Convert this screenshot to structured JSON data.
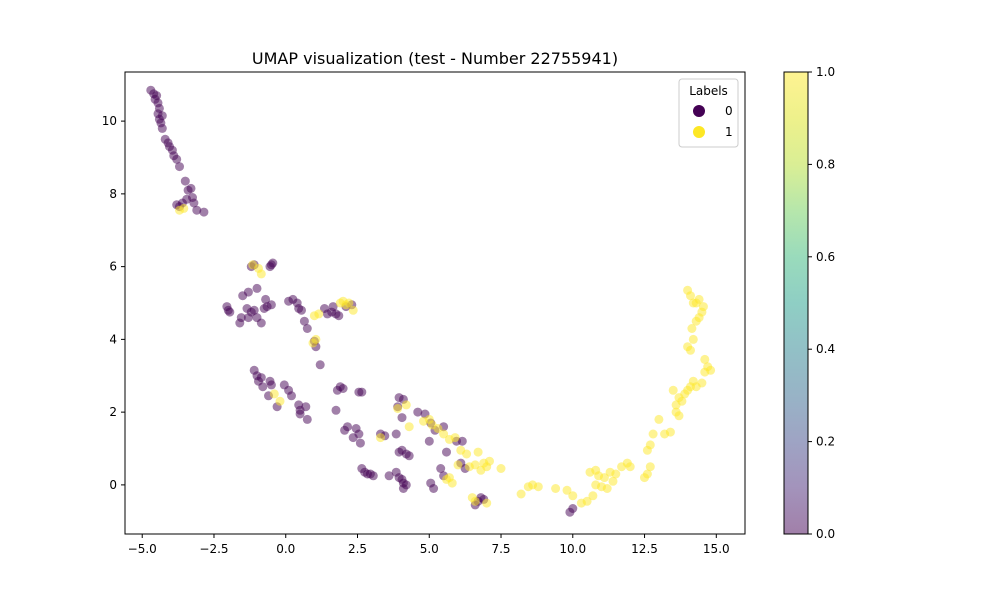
{
  "chart_data": {
    "type": "scatter",
    "title": "UMAP visualization (test - Number 22755941)",
    "xlabel": "",
    "ylabel": "",
    "xlim": [
      -5.6,
      16.0
    ],
    "ylim": [
      -1.35,
      11.35
    ],
    "xticks": [
      -5.0,
      -2.5,
      0.0,
      2.5,
      5.0,
      7.5,
      10.0,
      12.5,
      15.0
    ],
    "xtick_labels": [
      "−5.0",
      "−2.5",
      "0.0",
      "2.5",
      "5.0",
      "7.5",
      "10.0",
      "12.5",
      "15.0"
    ],
    "yticks": [
      0,
      2,
      4,
      6,
      8,
      10
    ],
    "ytick_labels": [
      "0",
      "2",
      "4",
      "6",
      "8",
      "10"
    ],
    "grid": false,
    "legend": {
      "title": "Labels",
      "placement": "top-right",
      "entries": [
        {
          "label": "0",
          "color": "#440154"
        },
        {
          "label": "1",
          "color": "#fde725"
        }
      ]
    },
    "colorbar": {
      "min": 0.0,
      "max": 1.0,
      "ticks": [
        0.0,
        0.2,
        0.4,
        0.6,
        0.8,
        1.0
      ],
      "tick_labels": [
        "0.0",
        "0.2",
        "0.4",
        "0.6",
        "0.8",
        "1.0"
      ],
      "colormap": "viridis",
      "alpha": 0.5
    },
    "point_alpha": 0.5,
    "series": [
      {
        "name": "0",
        "color": "#440154",
        "points": [
          [
            -4.7,
            10.85
          ],
          [
            -4.6,
            10.75
          ],
          [
            -4.55,
            10.6
          ],
          [
            -4.5,
            10.7
          ],
          [
            -4.45,
            10.5
          ],
          [
            -4.4,
            10.35
          ],
          [
            -4.45,
            10.2
          ],
          [
            -4.4,
            10.05
          ],
          [
            -4.3,
            10.15
          ],
          [
            -4.35,
            9.95
          ],
          [
            -4.3,
            9.8
          ],
          [
            -4.2,
            9.5
          ],
          [
            -4.1,
            9.4
          ],
          [
            -4.05,
            9.3
          ],
          [
            -3.95,
            9.2
          ],
          [
            -3.9,
            9.05
          ],
          [
            -3.8,
            8.95
          ],
          [
            -3.7,
            8.75
          ],
          [
            -3.5,
            8.35
          ],
          [
            -3.4,
            8.1
          ],
          [
            -3.3,
            8.15
          ],
          [
            -3.25,
            7.9
          ],
          [
            -3.2,
            7.75
          ],
          [
            -3.45,
            7.85
          ],
          [
            -3.6,
            7.75
          ],
          [
            -3.7,
            7.65
          ],
          [
            -3.8,
            7.7
          ],
          [
            -3.1,
            7.55
          ],
          [
            -2.85,
            7.5
          ],
          [
            -2.05,
            4.9
          ],
          [
            -2.0,
            4.8
          ],
          [
            -1.95,
            4.75
          ],
          [
            -1.5,
            5.2
          ],
          [
            -1.55,
            4.6
          ],
          [
            -1.6,
            4.45
          ],
          [
            -1.35,
            4.85
          ],
          [
            -1.3,
            4.6
          ],
          [
            -1.2,
            4.75
          ],
          [
            -1.1,
            4.8
          ],
          [
            -1.0,
            4.6
          ],
          [
            -0.85,
            4.45
          ],
          [
            -0.75,
            4.85
          ],
          [
            -0.65,
            4.9
          ],
          [
            -0.5,
            4.95
          ],
          [
            -0.7,
            5.1
          ],
          [
            -1.0,
            5.4
          ],
          [
            -1.3,
            5.3
          ],
          [
            -1.2,
            6.0
          ],
          [
            -1.1,
            6.05
          ],
          [
            -0.55,
            6.0
          ],
          [
            -0.5,
            6.05
          ],
          [
            -0.45,
            6.1
          ],
          [
            0.1,
            5.05
          ],
          [
            0.25,
            5.1
          ],
          [
            0.4,
            5.0
          ],
          [
            0.45,
            4.85
          ],
          [
            0.55,
            4.8
          ],
          [
            0.65,
            4.5
          ],
          [
            0.75,
            4.3
          ],
          [
            1.0,
            3.95
          ],
          [
            1.05,
            3.8
          ],
          [
            1.2,
            3.3
          ],
          [
            1.35,
            4.85
          ],
          [
            1.45,
            4.7
          ],
          [
            1.6,
            4.75
          ],
          [
            1.65,
            4.9
          ],
          [
            1.75,
            4.7
          ],
          [
            1.85,
            4.65
          ],
          [
            2.1,
            4.9
          ],
          [
            2.3,
            4.95
          ],
          [
            -1.1,
            3.15
          ],
          [
            -1.0,
            3.0
          ],
          [
            -0.95,
            2.85
          ],
          [
            -0.85,
            2.95
          ],
          [
            -0.8,
            2.7
          ],
          [
            -0.55,
            2.85
          ],
          [
            -0.5,
            2.75
          ],
          [
            -0.6,
            2.45
          ],
          [
            -0.3,
            2.15
          ],
          [
            -0.05,
            2.75
          ],
          [
            0.1,
            2.6
          ],
          [
            0.2,
            2.45
          ],
          [
            0.45,
            2.2
          ],
          [
            0.5,
            2.05
          ],
          [
            0.7,
            2.15
          ],
          [
            0.75,
            1.8
          ],
          [
            0.5,
            1.95
          ],
          [
            1.8,
            2.6
          ],
          [
            1.9,
            2.7
          ],
          [
            2.0,
            2.65
          ],
          [
            1.75,
            2.05
          ],
          [
            2.05,
            1.5
          ],
          [
            2.15,
            1.6
          ],
          [
            2.35,
            1.3
          ],
          [
            2.45,
            1.55
          ],
          [
            2.55,
            1.4
          ],
          [
            2.6,
            1.15
          ],
          [
            2.55,
            2.55
          ],
          [
            2.65,
            2.55
          ],
          [
            3.3,
            1.4
          ],
          [
            3.45,
            1.35
          ],
          [
            3.85,
            1.4
          ],
          [
            3.95,
            2.4
          ],
          [
            4.1,
            2.35
          ],
          [
            3.9,
            2.15
          ],
          [
            4.05,
            1.85
          ],
          [
            4.6,
            2.0
          ],
          [
            4.85,
            1.95
          ],
          [
            5.05,
            1.7
          ],
          [
            5.2,
            1.5
          ],
          [
            5.0,
            1.2
          ],
          [
            5.5,
            1.6
          ],
          [
            3.6,
            0.25
          ],
          [
            3.85,
            0.35
          ],
          [
            3.95,
            0.2
          ],
          [
            4.05,
            0.15
          ],
          [
            4.1,
            0.05
          ],
          [
            4.2,
            0.0
          ],
          [
            4.1,
            -0.1
          ],
          [
            3.95,
            0.9
          ],
          [
            4.05,
            0.95
          ],
          [
            4.2,
            0.85
          ],
          [
            4.3,
            0.8
          ],
          [
            2.65,
            0.45
          ],
          [
            2.75,
            0.35
          ],
          [
            2.85,
            0.3
          ],
          [
            2.95,
            0.3
          ],
          [
            3.05,
            0.25
          ],
          [
            5.05,
            0.05
          ],
          [
            5.15,
            -0.1
          ],
          [
            5.4,
            0.45
          ],
          [
            5.5,
            0.25
          ],
          [
            5.6,
            0.9
          ],
          [
            5.95,
            1.2
          ],
          [
            6.1,
            0.6
          ],
          [
            6.15,
            1.2
          ],
          [
            6.25,
            0.45
          ],
          [
            6.6,
            -0.55
          ],
          [
            6.7,
            -0.45
          ],
          [
            6.8,
            -0.35
          ],
          [
            6.9,
            -0.4
          ],
          [
            9.9,
            -0.75
          ],
          [
            10.0,
            -0.65
          ]
        ]
      },
      {
        "name": "1",
        "color": "#fde725",
        "points": [
          [
            -3.7,
            7.55
          ],
          [
            -3.55,
            7.6
          ],
          [
            -1.15,
            6.05
          ],
          [
            -0.95,
            5.95
          ],
          [
            -0.85,
            5.8
          ],
          [
            1.0,
            4.65
          ],
          [
            1.15,
            4.7
          ],
          [
            1.9,
            5.0
          ],
          [
            2.0,
            5.05
          ],
          [
            2.1,
            4.95
          ],
          [
            2.2,
            5.0
          ],
          [
            2.35,
            4.8
          ],
          [
            1.05,
            4.0
          ],
          [
            0.95,
            3.9
          ],
          [
            -0.2,
            2.3
          ],
          [
            -0.4,
            2.5
          ],
          [
            3.3,
            1.3
          ],
          [
            3.9,
            2.1
          ],
          [
            4.2,
            2.2
          ],
          [
            4.3,
            1.6
          ],
          [
            4.8,
            1.75
          ],
          [
            5.0,
            1.8
          ],
          [
            5.1,
            1.65
          ],
          [
            5.3,
            1.55
          ],
          [
            5.5,
            1.4
          ],
          [
            5.7,
            1.25
          ],
          [
            5.9,
            1.3
          ],
          [
            6.1,
            0.95
          ],
          [
            6.3,
            0.85
          ],
          [
            6.4,
            0.5
          ],
          [
            6.6,
            0.55
          ],
          [
            6.7,
            0.9
          ],
          [
            6.8,
            0.4
          ],
          [
            6.9,
            0.6
          ],
          [
            7.0,
            0.5
          ],
          [
            7.1,
            0.65
          ],
          [
            7.5,
            0.45
          ],
          [
            5.6,
            0.15
          ],
          [
            5.7,
            0.2
          ],
          [
            5.8,
            0.05
          ],
          [
            6.0,
            0.55
          ],
          [
            6.5,
            -0.35
          ],
          [
            6.6,
            -0.45
          ],
          [
            7.0,
            -0.5
          ],
          [
            8.2,
            -0.25
          ],
          [
            8.45,
            -0.05
          ],
          [
            8.6,
            0.0
          ],
          [
            8.8,
            -0.05
          ],
          [
            9.4,
            -0.1
          ],
          [
            9.8,
            -0.15
          ],
          [
            10.0,
            -0.3
          ],
          [
            10.3,
            -0.5
          ],
          [
            10.5,
            -0.45
          ],
          [
            10.7,
            -0.3
          ],
          [
            10.8,
            0.0
          ],
          [
            10.9,
            0.25
          ],
          [
            11.1,
            0.2
          ],
          [
            11.3,
            0.35
          ],
          [
            11.4,
            0.1
          ],
          [
            11.5,
            0.3
          ],
          [
            11.7,
            0.5
          ],
          [
            11.9,
            0.6
          ],
          [
            12.0,
            0.5
          ],
          [
            11.2,
            -0.1
          ],
          [
            10.6,
            0.35
          ],
          [
            10.8,
            0.4
          ],
          [
            11.0,
            -0.05
          ],
          [
            12.5,
            0.2
          ],
          [
            12.6,
            0.3
          ],
          [
            12.7,
            0.5
          ],
          [
            12.6,
            0.95
          ],
          [
            12.7,
            1.1
          ],
          [
            12.8,
            1.4
          ],
          [
            13.0,
            1.8
          ],
          [
            13.2,
            1.4
          ],
          [
            13.4,
            1.45
          ],
          [
            13.6,
            2.0
          ],
          [
            13.5,
            2.6
          ],
          [
            13.7,
            2.4
          ],
          [
            13.8,
            2.3
          ],
          [
            13.9,
            2.5
          ],
          [
            14.0,
            2.6
          ],
          [
            14.1,
            2.7
          ],
          [
            14.2,
            2.85
          ],
          [
            14.3,
            2.7
          ],
          [
            14.5,
            2.8
          ],
          [
            14.6,
            3.1
          ],
          [
            14.7,
            3.25
          ],
          [
            14.8,
            3.15
          ],
          [
            14.6,
            3.45
          ],
          [
            14.0,
            3.8
          ],
          [
            14.1,
            3.7
          ],
          [
            14.2,
            4.0
          ],
          [
            14.15,
            4.3
          ],
          [
            14.3,
            4.5
          ],
          [
            14.4,
            4.6
          ],
          [
            14.5,
            4.75
          ],
          [
            14.55,
            4.9
          ],
          [
            14.4,
            5.1
          ],
          [
            14.3,
            5.0
          ],
          [
            14.1,
            5.2
          ],
          [
            14.0,
            5.35
          ],
          [
            14.2,
            5.0
          ],
          [
            13.6,
            2.2
          ],
          [
            13.7,
            1.9
          ]
        ]
      }
    ]
  }
}
